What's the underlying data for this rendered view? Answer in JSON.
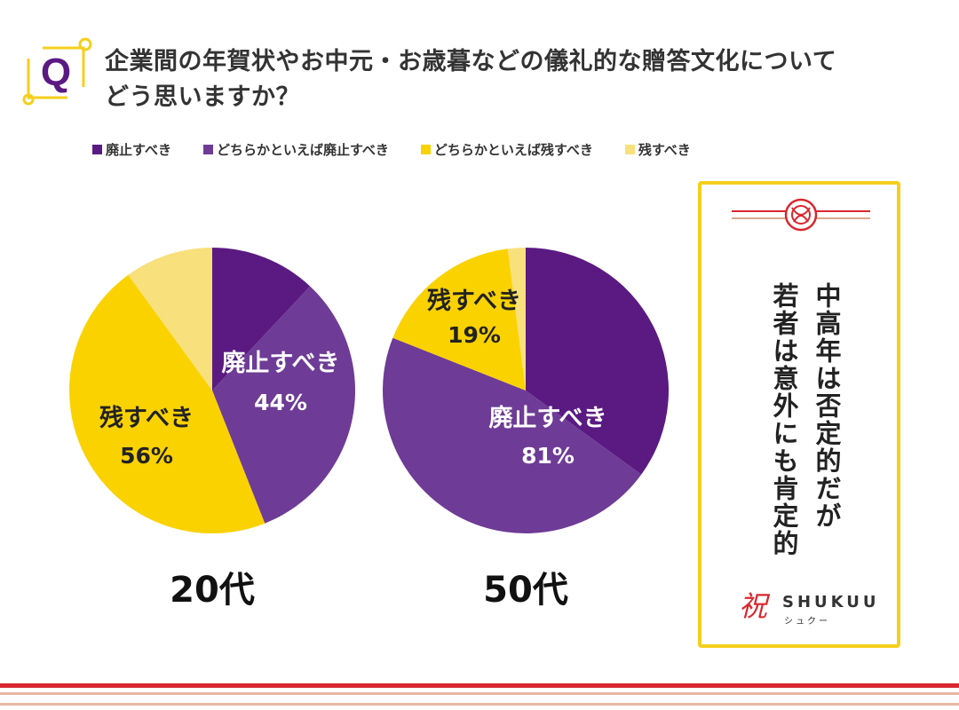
{
  "question": {
    "badge": "Q",
    "line1": "企業間の年賀状やお中元・お歳暮などの儀礼的な贈答文化について",
    "line2": "どう思いますか？"
  },
  "legend": [
    {
      "label": "廃止すべき",
      "color": "#5a1a82"
    },
    {
      "label": "どちらかといえば廃止すべき",
      "color": "#6e3b96"
    },
    {
      "label": "どちらかといえば残すべき",
      "color": "#fad200"
    },
    {
      "label": "残すべき",
      "color": "#f8e07d"
    }
  ],
  "chart_data": [
    {
      "type": "pie",
      "title": "20代",
      "categories": [
        "廃止すべき",
        "どちらかといえば廃止すべき",
        "どちらかといえば残すべき",
        "残すべき"
      ],
      "values": [
        12,
        32,
        46,
        10
      ],
      "colors": [
        "#5a1a82",
        "#6e3b96",
        "#fad200",
        "#f8e07d"
      ],
      "labels": [
        {
          "text": "廃止すべき",
          "value": "44%"
        },
        {
          "text": "残すべき",
          "value": "56%"
        }
      ]
    },
    {
      "type": "pie",
      "title": "50代",
      "categories": [
        "廃止すべき",
        "どちらかといえば廃止すべき",
        "どちらかといえば残すべき",
        "残すべき"
      ],
      "values": [
        35,
        46,
        17,
        2
      ],
      "colors": [
        "#5a1a82",
        "#6e3b96",
        "#fad200",
        "#f8e07d"
      ],
      "labels": [
        {
          "text": "廃止すべき",
          "value": "81%"
        },
        {
          "text": "残すべき",
          "value": "19%"
        }
      ]
    }
  ],
  "card": {
    "line1": "中高年は否定的だが",
    "line2": "若者は意外にも肯定的"
  },
  "logo": {
    "word": "SHUKUU",
    "kana": "シュクー",
    "mark": "祝"
  }
}
